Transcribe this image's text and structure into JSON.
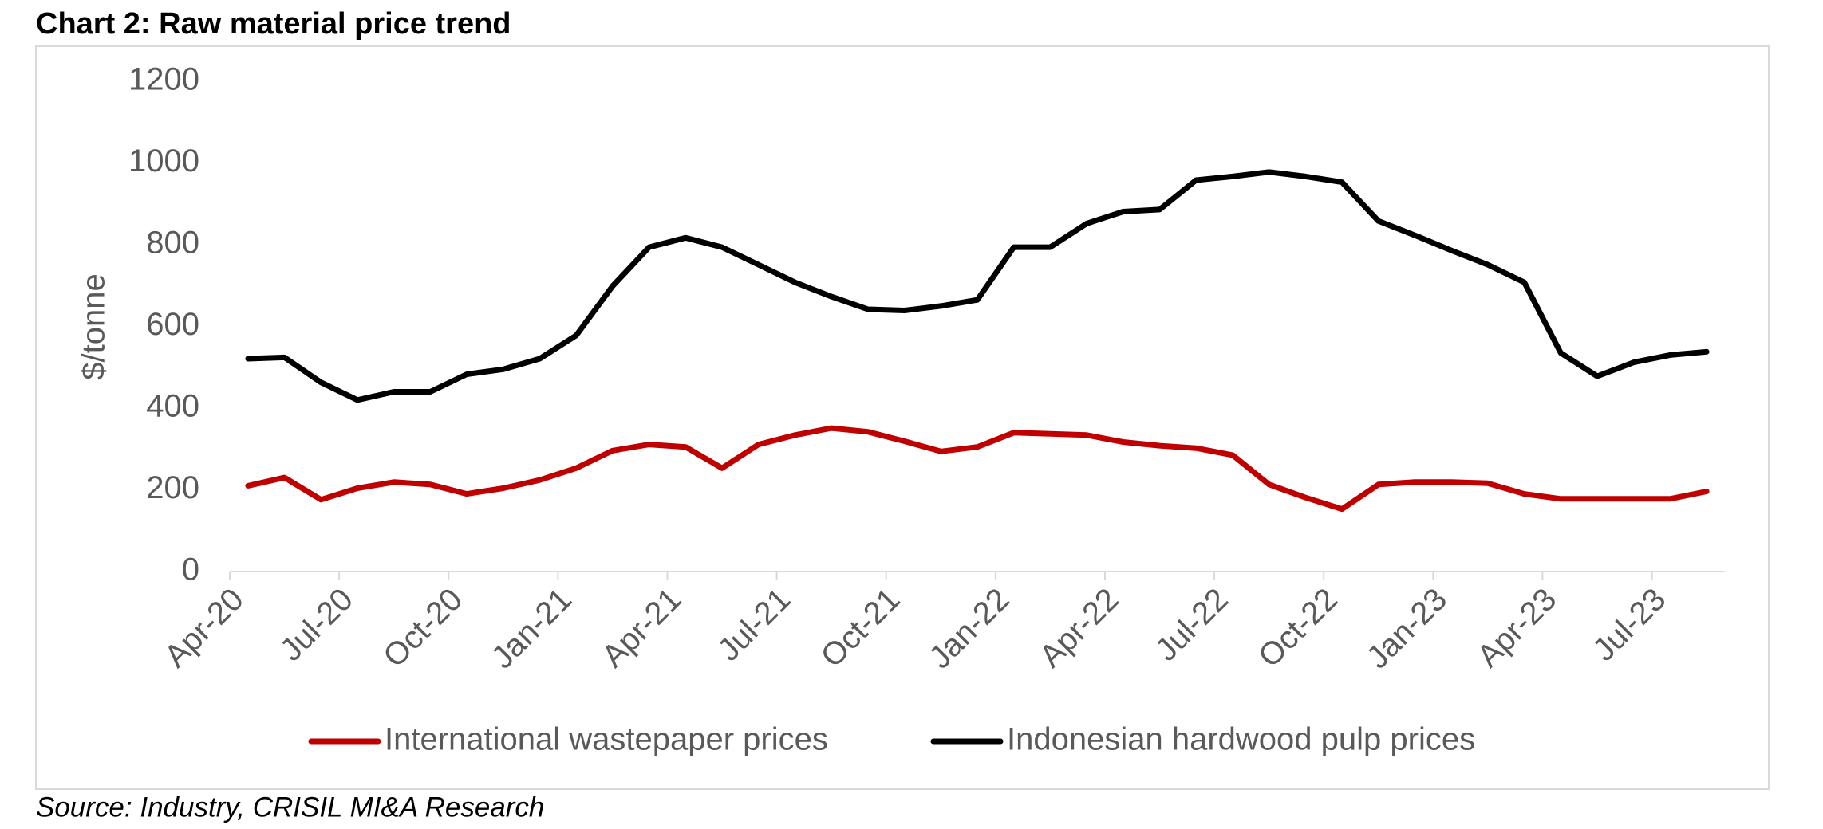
{
  "chart_data": {
    "type": "line",
    "title": "Chart 2: Raw material price trend",
    "y_label": "$/tonne",
    "source": "Source: Industry, CRISIL MI&A Research",
    "categories": [
      "Apr-20",
      null,
      null,
      "Jul-20",
      null,
      null,
      "Oct-20",
      null,
      null,
      "Jan-21",
      null,
      null,
      "Apr-21",
      null,
      null,
      "Jul-21",
      null,
      null,
      "Oct-21",
      null,
      null,
      "Jan-22",
      null,
      null,
      "Apr-22",
      null,
      null,
      "Jul-22",
      null,
      null,
      "Oct-22",
      null,
      null,
      "Jan-23",
      null,
      null,
      "Apr-23",
      null,
      null,
      "Jul-23",
      null
    ],
    "series": [
      {
        "name": "International wastepaper prices",
        "color": "#c00000",
        "values": [
          210,
          230,
          176,
          204,
          219,
          213,
          190,
          204,
          224,
          253,
          296,
          311,
          305,
          253,
          311,
          334,
          351,
          342,
          319,
          294,
          305,
          340,
          337,
          334,
          317,
          308,
          302,
          285,
          213,
          181,
          153,
          213,
          219,
          219,
          216,
          190,
          178,
          178,
          178,
          178,
          196
        ]
      },
      {
        "name": "Indonesian hardwood pulp prices",
        "color": "#000000",
        "values": [
          521,
          524,
          463,
          420,
          440,
          440,
          483,
          495,
          521,
          578,
          699,
          794,
          817,
          794,
          751,
          708,
          673,
          642,
          639,
          650,
          665,
          794,
          794,
          852,
          881,
          886,
          958,
          967,
          978,
          967,
          953,
          858,
          823,
          786,
          751,
          708,
          535,
          478,
          512,
          530,
          538
        ]
      }
    ],
    "ylim": [
      0,
      1200
    ],
    "yticks": [
      0,
      200,
      400,
      600,
      800,
      1000,
      1200
    ],
    "grid": false,
    "legend": "bottom"
  }
}
